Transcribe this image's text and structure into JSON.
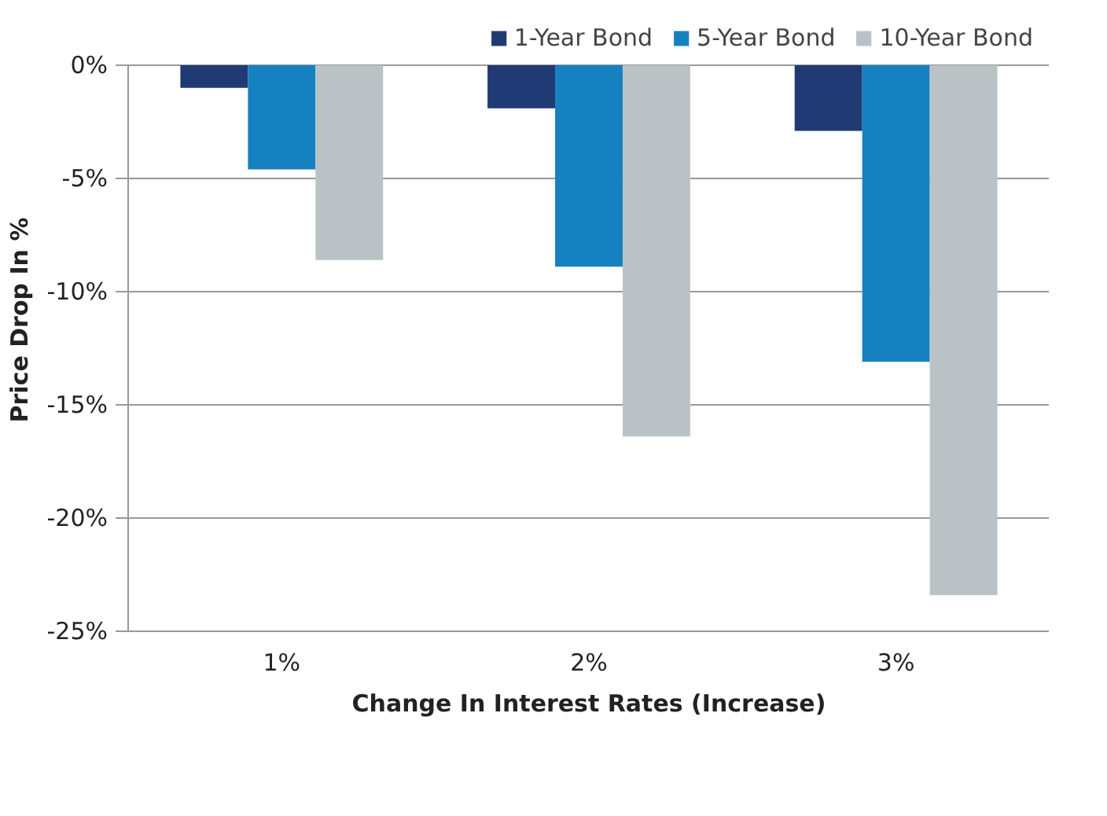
{
  "chart_data": {
    "type": "bar",
    "xlabel": "Change In Interest Rates (Increase)",
    "ylabel": "Price Drop In %",
    "categories": [
      "1%",
      "2%",
      "3%"
    ],
    "series": [
      {
        "name": "1-Year Bond",
        "color": "#203a74",
        "values": [
          -1.0,
          -1.9,
          -2.9
        ]
      },
      {
        "name": "5-Year Bond",
        "color": "#1681c1",
        "values": [
          -4.6,
          -8.9,
          -13.1
        ]
      },
      {
        "name": "10-Year Bond",
        "color": "#bbc2c5",
        "values": [
          -8.6,
          -16.4,
          -23.4
        ]
      }
    ],
    "ylim": [
      -25,
      0
    ],
    "yticks": [
      {
        "value": 0,
        "label": "0%"
      },
      {
        "value": -5,
        "label": "-5%"
      },
      {
        "value": -10,
        "label": "-10%"
      },
      {
        "value": -15,
        "label": "-15%"
      },
      {
        "value": -20,
        "label": "-20%"
      },
      {
        "value": -25,
        "label": "-25%"
      }
    ],
    "grid": "y",
    "legend": "top"
  }
}
